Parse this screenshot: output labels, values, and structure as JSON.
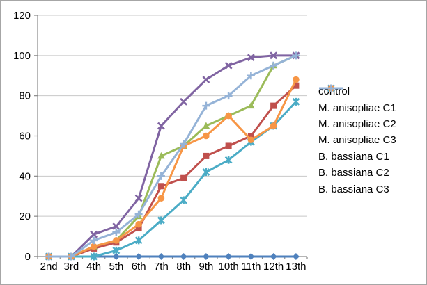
{
  "window": {
    "background": "#ffffff",
    "border_color": "#a6a6a6"
  },
  "chart_data": {
    "type": "line",
    "title": "",
    "xlabel": "",
    "ylabel": "",
    "categories": [
      "2nd",
      "3rd",
      "4th",
      "5th",
      "6th",
      "7th",
      "8th",
      "9th",
      "10th",
      "11th",
      "12th",
      "13th"
    ],
    "ylim": [
      0,
      120
    ],
    "yticks": [
      0,
      20,
      40,
      60,
      80,
      100,
      120
    ],
    "grid": "horizontal",
    "gridline_color": "#c8c8c8",
    "axis_color": "#898989",
    "tick_label_color": "#000000",
    "legend_position": "right",
    "series": [
      {
        "name": "control",
        "color": "#4F81BD",
        "marker": "diamond",
        "values": [
          0,
          0,
          0,
          0,
          0,
          0,
          0,
          0,
          0,
          0,
          0,
          0
        ]
      },
      {
        "name": "M. anisopliae C1",
        "color": "#C0504D",
        "marker": "square",
        "values": [
          0,
          0,
          4,
          7,
          14,
          35,
          39,
          50,
          55,
          60,
          75,
          85
        ]
      },
      {
        "name": "M. anisopliae C2",
        "color": "#9BBB59",
        "marker": "triangle",
        "values": [
          0,
          0,
          5,
          8,
          20,
          50,
          55,
          65,
          70,
          75,
          95,
          100
        ]
      },
      {
        "name": "M. anisopliae C3",
        "color": "#8064A2",
        "marker": "x",
        "values": [
          0,
          0,
          11,
          15,
          29,
          65,
          77,
          88,
          95,
          99,
          100,
          100
        ]
      },
      {
        "name": "B. bassiana C1",
        "color": "#4BACC6",
        "marker": "asterisk",
        "values": [
          0,
          0,
          0,
          3,
          8,
          18,
          28,
          42,
          48,
          57,
          65,
          77
        ]
      },
      {
        "name": "B. bassiana C2",
        "color": "#F79646",
        "marker": "circle",
        "values": [
          0,
          0,
          5,
          8,
          16,
          29,
          55,
          60,
          70,
          58,
          65,
          88
        ]
      },
      {
        "name": "B. bassiana C3",
        "color": "#95B3D7",
        "marker": "plus",
        "values": [
          0,
          0,
          8,
          12,
          21,
          40,
          56,
          75,
          80,
          90,
          95,
          100
        ]
      }
    ]
  }
}
